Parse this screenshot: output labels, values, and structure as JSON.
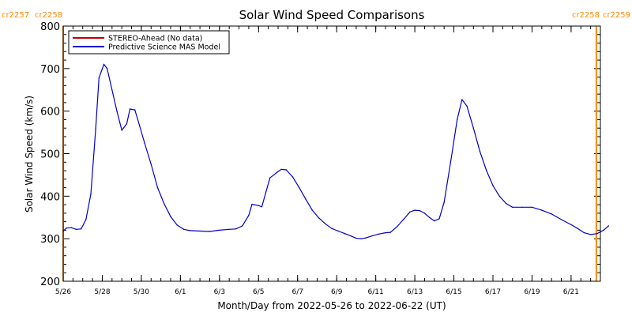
{
  "chart_data": {
    "type": "line",
    "title": "Solar Wind Speed Comparisons",
    "xlabel": "Month/Day from 2022-05-26 to 2022-06-22 (UT)",
    "ylabel": "Solar Wind Speed (km/s)",
    "ylim": [
      200,
      800
    ],
    "yticks": [
      200,
      300,
      400,
      500,
      600,
      700,
      800
    ],
    "xlim": [
      "2022-05-26T00:00",
      "2022-06-22T12:00"
    ],
    "xticks": [
      "5/26",
      "5/28",
      "5/30",
      "6/1",
      "6/3",
      "6/5",
      "6/7",
      "6/9",
      "6/11",
      "6/13",
      "6/15",
      "6/17",
      "6/19",
      "6/21"
    ],
    "grid": false,
    "legend_position": "top-left",
    "legend": [
      {
        "label": "STEREO-Ahead (No data)",
        "color": "#c00000"
      },
      {
        "label": "Predictive Science MAS Model",
        "color": "#0000cc"
      }
    ],
    "markers": [
      {
        "date": "2022-05-26T00:00",
        "labels": [
          "cr2257",
          "cr2258"
        ],
        "position": "top-left",
        "color": "#ff8800"
      },
      {
        "date": "2022-06-22T07:00",
        "labels": [
          "cr2258",
          "cr2259"
        ],
        "position": "top-right",
        "color": "#ff8800"
      }
    ],
    "series": [
      {
        "name": "Predictive Science MAS Model",
        "color": "#0000cc",
        "points": [
          [
            "2022-05-26T00:00",
            318
          ],
          [
            "2022-05-26T04:00",
            325
          ],
          [
            "2022-05-26T10:00",
            326
          ],
          [
            "2022-05-26T16:00",
            322
          ],
          [
            "2022-05-26T22:00",
            323
          ],
          [
            "2022-05-27T04:00",
            345
          ],
          [
            "2022-05-27T10:00",
            405
          ],
          [
            "2022-05-27T16:00",
            560
          ],
          [
            "2022-05-27T20:00",
            678
          ],
          [
            "2022-05-28T02:00",
            710
          ],
          [
            "2022-05-28T06:00",
            700
          ],
          [
            "2022-05-28T12:00",
            650
          ],
          [
            "2022-05-28T18:00",
            600
          ],
          [
            "2022-05-29T00:00",
            555
          ],
          [
            "2022-05-29T06:00",
            570
          ],
          [
            "2022-05-29T10:00",
            605
          ],
          [
            "2022-05-29T16:00",
            603
          ],
          [
            "2022-05-29T22:00",
            565
          ],
          [
            "2022-05-30T04:00",
            525
          ],
          [
            "2022-05-30T12:00",
            475
          ],
          [
            "2022-05-30T20:00",
            420
          ],
          [
            "2022-05-31T04:00",
            382
          ],
          [
            "2022-05-31T12:00",
            352
          ],
          [
            "2022-05-31T20:00",
            332
          ],
          [
            "2022-06-01T04:00",
            322
          ],
          [
            "2022-06-01T12:00",
            319
          ],
          [
            "2022-06-02T00:00",
            318
          ],
          [
            "2022-06-02T12:00",
            317
          ],
          [
            "2022-06-03T00:00",
            320
          ],
          [
            "2022-06-03T12:00",
            322
          ],
          [
            "2022-06-03T20:00",
            323
          ],
          [
            "2022-06-04T04:00",
            330
          ],
          [
            "2022-06-04T12:00",
            355
          ],
          [
            "2022-06-04T16:00",
            381
          ],
          [
            "2022-06-05T00:00",
            378
          ],
          [
            "2022-06-05T04:00",
            375
          ],
          [
            "2022-06-05T14:00",
            443
          ],
          [
            "2022-06-06T00:00",
            458
          ],
          [
            "2022-06-06T04:00",
            463
          ],
          [
            "2022-06-06T10:00",
            462
          ],
          [
            "2022-06-06T18:00",
            445
          ],
          [
            "2022-06-07T02:00",
            420
          ],
          [
            "2022-06-07T10:00",
            393
          ],
          [
            "2022-06-07T18:00",
            367
          ],
          [
            "2022-06-08T02:00",
            349
          ],
          [
            "2022-06-08T10:00",
            335
          ],
          [
            "2022-06-08T18:00",
            324
          ],
          [
            "2022-06-09T02:00",
            318
          ],
          [
            "2022-06-09T10:00",
            312
          ],
          [
            "2022-06-09T18:00",
            306
          ],
          [
            "2022-06-10T00:00",
            301
          ],
          [
            "2022-06-10T06:00",
            300
          ],
          [
            "2022-06-10T12:00",
            302
          ],
          [
            "2022-06-10T20:00",
            307
          ],
          [
            "2022-06-11T04:00",
            311
          ],
          [
            "2022-06-11T12:00",
            314
          ],
          [
            "2022-06-11T18:00",
            315
          ],
          [
            "2022-06-12T02:00",
            328
          ],
          [
            "2022-06-12T10:00",
            345
          ],
          [
            "2022-06-12T18:00",
            363
          ],
          [
            "2022-06-13T00:00",
            367
          ],
          [
            "2022-06-13T06:00",
            366
          ],
          [
            "2022-06-13T12:00",
            360
          ],
          [
            "2022-06-13T18:00",
            350
          ],
          [
            "2022-06-14T00:00",
            342
          ],
          [
            "2022-06-14T06:00",
            347
          ],
          [
            "2022-06-14T12:00",
            386
          ],
          [
            "2022-06-14T20:00",
            480
          ],
          [
            "2022-06-15T04:00",
            580
          ],
          [
            "2022-06-15T10:00",
            627
          ],
          [
            "2022-06-15T16:00",
            612
          ],
          [
            "2022-06-16T00:00",
            560
          ],
          [
            "2022-06-16T08:00",
            505
          ],
          [
            "2022-06-16T16:00",
            460
          ],
          [
            "2022-06-17T00:00",
            425
          ],
          [
            "2022-06-17T08:00",
            400
          ],
          [
            "2022-06-17T16:00",
            383
          ],
          [
            "2022-06-18T00:00",
            374
          ],
          [
            "2022-06-18T12:00",
            374
          ],
          [
            "2022-06-19T00:00",
            374
          ],
          [
            "2022-06-19T12:00",
            367
          ],
          [
            "2022-06-20T00:00",
            358
          ],
          [
            "2022-06-20T12:00",
            345
          ],
          [
            "2022-06-21T00:00",
            333
          ],
          [
            "2022-06-21T08:00",
            324
          ],
          [
            "2022-06-21T16:00",
            314
          ],
          [
            "2022-06-22T00:00",
            310
          ],
          [
            "2022-06-22T08:00",
            312
          ],
          [
            "2022-06-22T16:00",
            320
          ],
          [
            "2022-06-22T22:00",
            330
          ]
        ]
      }
    ]
  }
}
